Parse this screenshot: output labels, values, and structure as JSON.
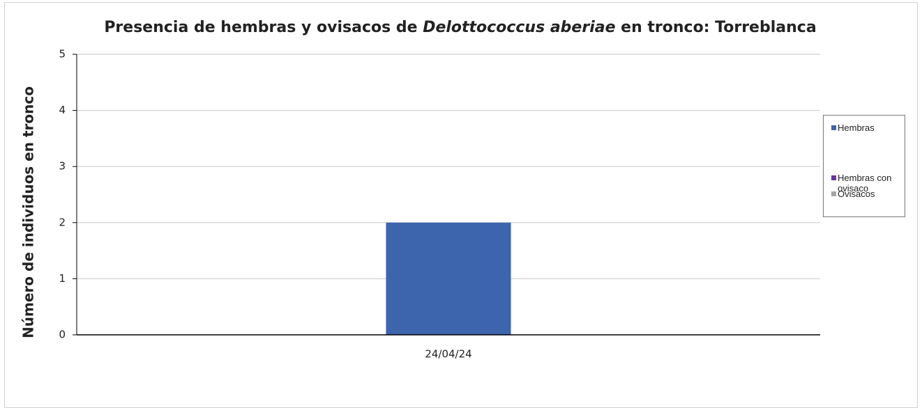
{
  "chart_data": {
    "type": "bar",
    "title": [
      "Presencia de hembras y ovisacos de ",
      "Delottococcus aberiae",
      " en tronco: Torreblanca"
    ],
    "y_label": "Número de individuos en tronco",
    "categories": [
      "24/04/24"
    ],
    "series": [
      {
        "name": "Hembras",
        "color": "#3d65ad",
        "values": [
          2
        ]
      },
      {
        "name": "Hembras con ovisaco",
        "color": "#7030a0",
        "values": [
          0
        ]
      },
      {
        "name": "Ovisacos",
        "color": "#a5a5a5",
        "values": [
          0
        ]
      }
    ],
    "ylim": [
      0,
      5
    ],
    "yticks": [
      0,
      1,
      2,
      3,
      4,
      5
    ],
    "grid": true,
    "legend": "right"
  }
}
